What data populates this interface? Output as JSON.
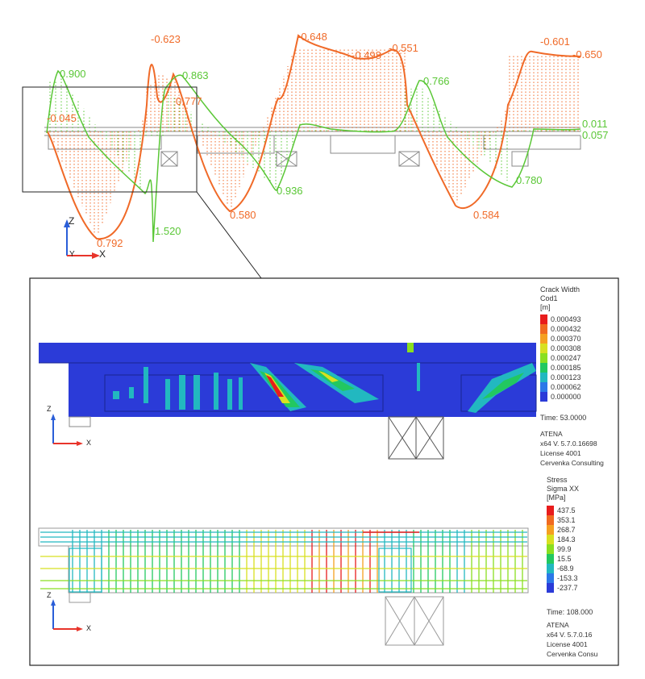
{
  "top_plot": {
    "orange_labels": [
      "-0.623",
      "-0.648",
      "-0.498",
      "-0.551",
      "-0.601",
      "-0.650",
      "-0.045",
      "0.777",
      "0.580",
      "0.584",
      "0.792"
    ],
    "green_labels": [
      "0.900",
      "0.863",
      "0.766",
      "0.011",
      "0.057",
      "0.936",
      "0.780",
      "1.520"
    ],
    "axis": {
      "z": "Z",
      "x": "X",
      "y": "Y"
    }
  },
  "crack_panel": {
    "legend_title": [
      "Crack Width",
      "Cod1",
      "[m]"
    ],
    "legend_values": [
      "0.000493",
      "0.000432",
      "0.000370",
      "0.000308",
      "0.000247",
      "0.000185",
      "0.000123",
      "0.000062",
      "0.000000"
    ],
    "legend_colors": [
      "#e81c1c",
      "#f06a20",
      "#f5a020",
      "#d8e020",
      "#8adf20",
      "#22c860",
      "#22b8c0",
      "#2c78e8",
      "#2b3bd8"
    ],
    "time": "Time:  53.0000",
    "info": [
      "ATENA",
      "x64 V. 5.7.0.16698",
      "License 4001",
      "Cervenka Consulting"
    ],
    "axis": {
      "z": "Z",
      "x": "X"
    }
  },
  "stress_panel": {
    "legend_title": [
      "Stress",
      "Sigma XX",
      "[MPa]"
    ],
    "legend_values": [
      "437.5",
      "353.1",
      "268.7",
      "184.3",
      "99.9",
      "15.5",
      "-68.9",
      "-153.3",
      "-237.7"
    ],
    "legend_colors": [
      "#e81c1c",
      "#f06a20",
      "#f5a020",
      "#d8e020",
      "#8adf20",
      "#22c860",
      "#22b8c0",
      "#2c78e8",
      "#2b3bd8"
    ],
    "time": "Time:  108.000",
    "info": [
      "ATENA",
      "x64 V. 5.7.0.16",
      "License 4001",
      "Cervenka Consu"
    ],
    "axis": {
      "z": "Z",
      "x": "X"
    }
  }
}
